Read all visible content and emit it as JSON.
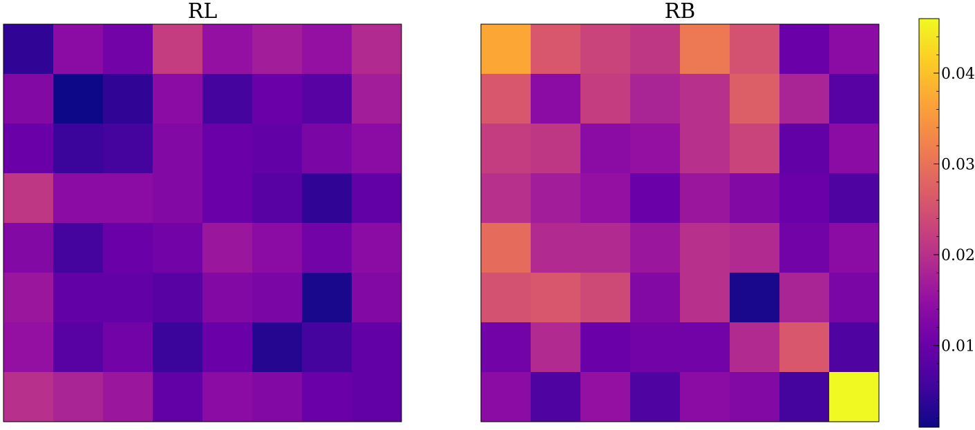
{
  "chart_data": {
    "type": "heatmap",
    "colormap": "plasma",
    "vmin": 0.001,
    "vmax": 0.046,
    "panels": [
      {
        "title": "RL",
        "values": [
          [
            0.004,
            0.014,
            0.011,
            0.022,
            0.015,
            0.017,
            0.015,
            0.019
          ],
          [
            0.013,
            0.001,
            0.004,
            0.014,
            0.006,
            0.01,
            0.008,
            0.017
          ],
          [
            0.01,
            0.005,
            0.006,
            0.013,
            0.01,
            0.009,
            0.012,
            0.014
          ],
          [
            0.021,
            0.014,
            0.014,
            0.013,
            0.01,
            0.008,
            0.004,
            0.009
          ],
          [
            0.013,
            0.006,
            0.01,
            0.011,
            0.016,
            0.014,
            0.011,
            0.014
          ],
          [
            0.016,
            0.009,
            0.009,
            0.008,
            0.013,
            0.012,
            0.002,
            0.013
          ],
          [
            0.015,
            0.008,
            0.011,
            0.005,
            0.01,
            0.003,
            0.006,
            0.009
          ],
          [
            0.02,
            0.018,
            0.016,
            0.009,
            0.014,
            0.013,
            0.01,
            0.009
          ]
        ]
      },
      {
        "title": "RB",
        "values": [
          [
            0.037,
            0.026,
            0.023,
            0.021,
            0.031,
            0.025,
            0.01,
            0.014
          ],
          [
            0.026,
            0.014,
            0.022,
            0.018,
            0.02,
            0.027,
            0.018,
            0.008
          ],
          [
            0.022,
            0.021,
            0.014,
            0.015,
            0.02,
            0.023,
            0.009,
            0.014
          ],
          [
            0.02,
            0.017,
            0.015,
            0.01,
            0.016,
            0.013,
            0.01,
            0.007
          ],
          [
            0.029,
            0.019,
            0.019,
            0.016,
            0.02,
            0.019,
            0.011,
            0.014
          ],
          [
            0.025,
            0.026,
            0.024,
            0.013,
            0.02,
            0.002,
            0.018,
            0.012
          ],
          [
            0.011,
            0.019,
            0.01,
            0.011,
            0.011,
            0.019,
            0.026,
            0.007
          ],
          [
            0.014,
            0.007,
            0.015,
            0.007,
            0.014,
            0.013,
            0.006,
            0.046
          ]
        ]
      }
    ],
    "colorbar": {
      "ticks": [
        0.01,
        0.02,
        0.03,
        0.04
      ],
      "tick_labels": [
        "0.01",
        "0.02",
        "0.03",
        "0.04"
      ]
    }
  }
}
